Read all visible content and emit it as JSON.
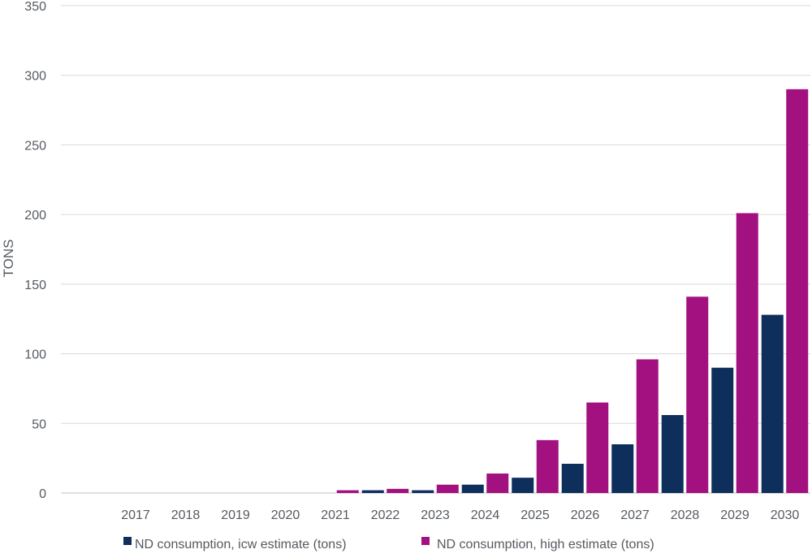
{
  "chart_data": {
    "type": "bar",
    "ylabel": "TONS",
    "ylim": [
      0,
      350
    ],
    "yticks": [
      0,
      50,
      100,
      150,
      200,
      250,
      300,
      350
    ],
    "categories": [
      "2017",
      "2018",
      "2019",
      "2020",
      "2021",
      "2022",
      "2023",
      "2024",
      "2025",
      "2026",
      "2027",
      "2028",
      "2029",
      "2030"
    ],
    "series": [
      {
        "name": "ND consumption, icw estimate (tons)",
        "color": "#0e2f5c",
        "values": [
          0,
          0,
          0,
          0,
          0,
          2,
          2,
          6,
          11,
          21,
          35,
          56,
          90,
          128
        ]
      },
      {
        "name": "ND consumption, high estimate (tons)",
        "color": "#a3107f",
        "values": [
          0,
          0,
          0,
          0,
          2,
          3,
          6,
          14,
          38,
          65,
          96,
          141,
          201,
          290
        ]
      }
    ],
    "legend_position": "bottom",
    "grid": true
  }
}
